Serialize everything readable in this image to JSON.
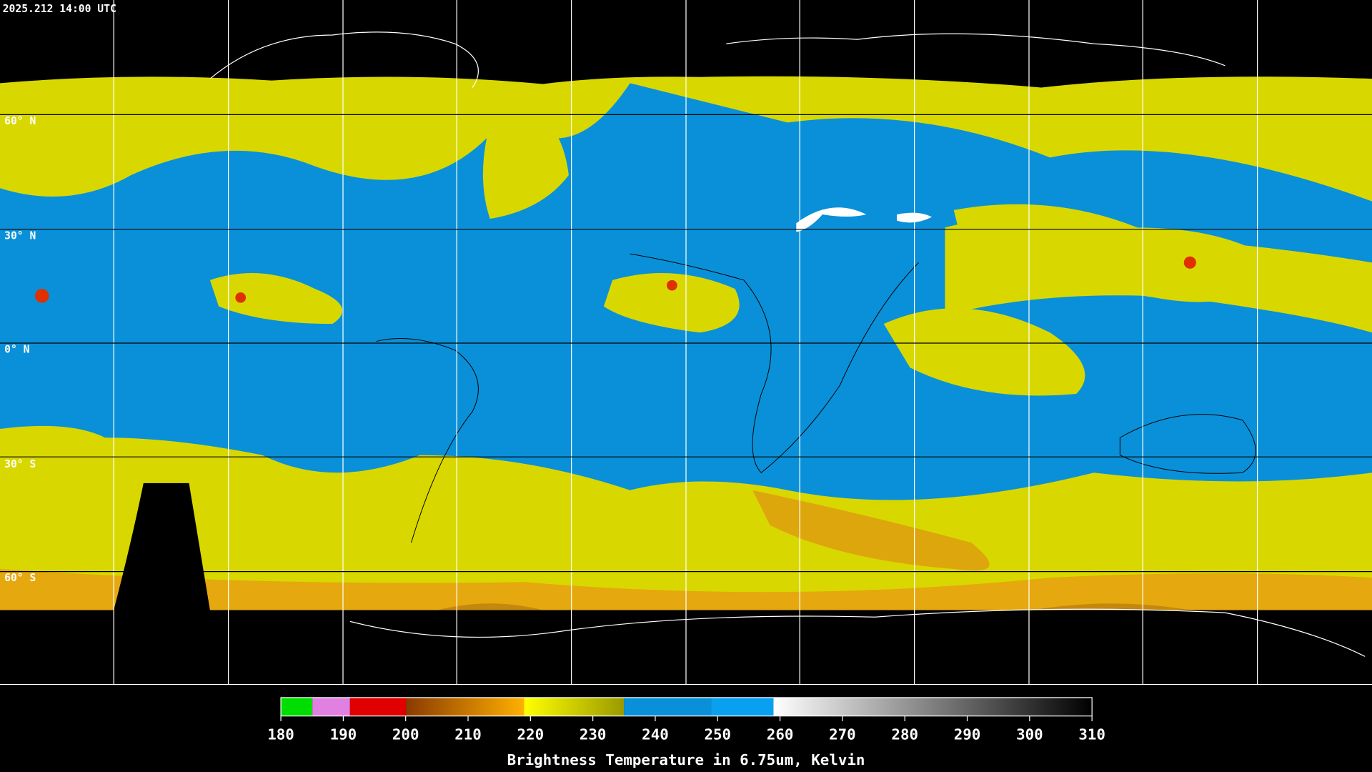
{
  "header": {
    "timestamp": "2025.212 14:00 UTC"
  },
  "map": {
    "latitude_labels": [
      "60° N",
      "30° N",
      "0° N",
      "30° S",
      "60° S"
    ]
  },
  "colorbar": {
    "ticks": [
      180,
      190,
      200,
      210,
      220,
      230,
      240,
      250,
      260,
      270,
      280,
      290,
      300,
      310
    ],
    "title": "Brightness Temperature in 6.75um, Kelvin"
  }
}
